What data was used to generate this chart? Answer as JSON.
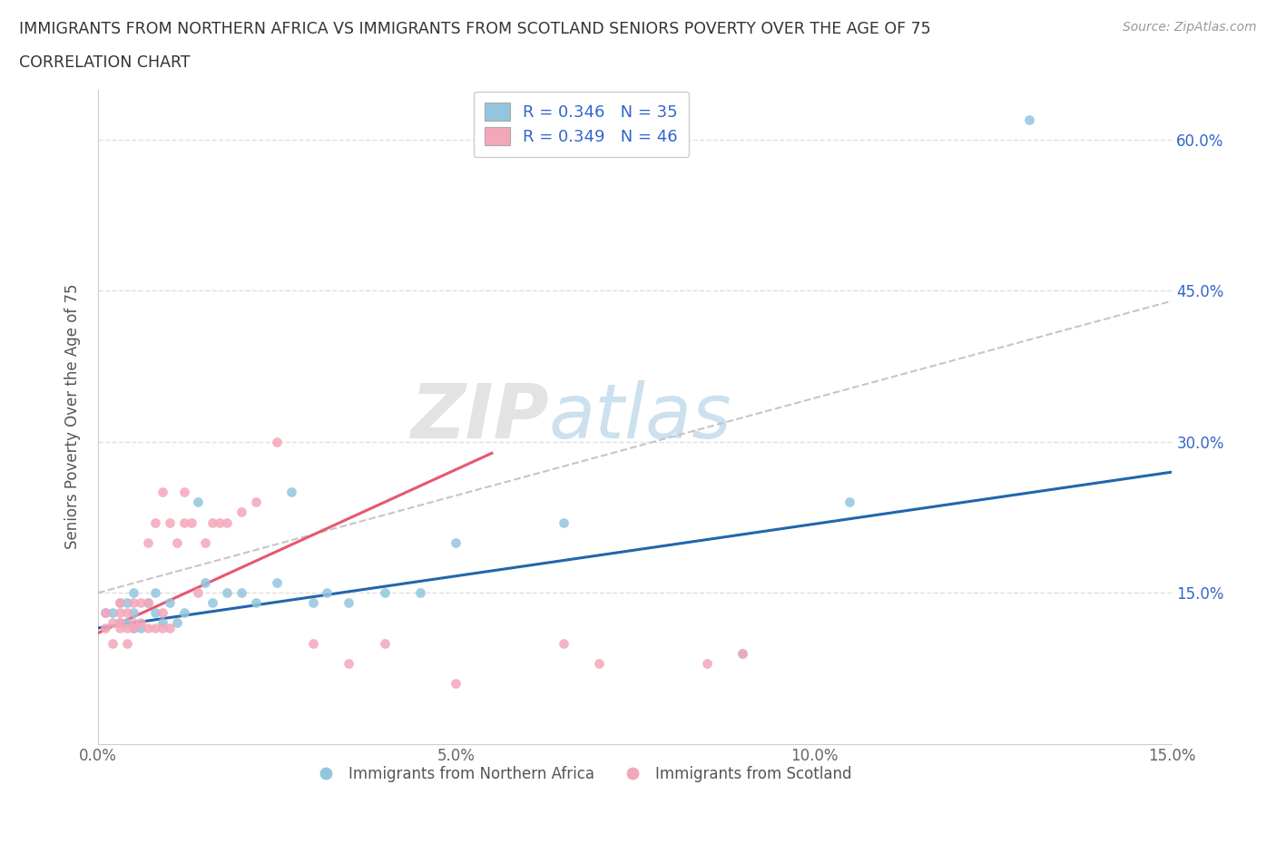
{
  "title_line1": "IMMIGRANTS FROM NORTHERN AFRICA VS IMMIGRANTS FROM SCOTLAND SENIORS POVERTY OVER THE AGE OF 75",
  "title_line2": "CORRELATION CHART",
  "source": "Source: ZipAtlas.com",
  "ylabel": "Seniors Poverty Over the Age of 75",
  "watermark_left": "ZIP",
  "watermark_right": "atlas",
  "legend_blue_r": "R = 0.346",
  "legend_blue_n": "N = 35",
  "legend_pink_r": "R = 0.349",
  "legend_pink_n": "N = 46",
  "blue_color": "#92c5de",
  "pink_color": "#f4a7b9",
  "trend_blue_color": "#2166ac",
  "trend_pink_color": "#e8566e",
  "trend_pink_dash_color": "#e8566e",
  "trend_gray_color": "#c0c0c0",
  "legend_text_color": "#3366cc",
  "xlim": [
    0.0,
    0.15
  ],
  "ylim": [
    0.0,
    0.65
  ],
  "xticks": [
    0.0,
    0.05,
    0.1,
    0.15
  ],
  "xtick_labels": [
    "0.0%",
    "5.0%",
    "10.0%",
    "15.0%"
  ],
  "yticks": [
    0.15,
    0.3,
    0.45,
    0.6
  ],
  "ytick_labels": [
    "15.0%",
    "30.0%",
    "45.0%",
    "60.0%"
  ],
  "blue_scatter_x": [
    0.001,
    0.002,
    0.003,
    0.003,
    0.004,
    0.004,
    0.005,
    0.005,
    0.005,
    0.006,
    0.007,
    0.008,
    0.008,
    0.009,
    0.01,
    0.011,
    0.012,
    0.014,
    0.015,
    0.016,
    0.018,
    0.02,
    0.022,
    0.025,
    0.027,
    0.03,
    0.032,
    0.035,
    0.04,
    0.045,
    0.05,
    0.065,
    0.09,
    0.105,
    0.13
  ],
  "blue_scatter_y": [
    0.13,
    0.13,
    0.12,
    0.14,
    0.12,
    0.14,
    0.115,
    0.13,
    0.15,
    0.115,
    0.14,
    0.13,
    0.15,
    0.12,
    0.14,
    0.12,
    0.13,
    0.24,
    0.16,
    0.14,
    0.15,
    0.15,
    0.14,
    0.16,
    0.25,
    0.14,
    0.15,
    0.14,
    0.15,
    0.15,
    0.2,
    0.22,
    0.09,
    0.24,
    0.62
  ],
  "pink_scatter_x": [
    0.001,
    0.001,
    0.002,
    0.002,
    0.003,
    0.003,
    0.003,
    0.003,
    0.004,
    0.004,
    0.004,
    0.005,
    0.005,
    0.005,
    0.006,
    0.006,
    0.007,
    0.007,
    0.007,
    0.008,
    0.008,
    0.009,
    0.009,
    0.009,
    0.01,
    0.01,
    0.011,
    0.012,
    0.012,
    0.013,
    0.014,
    0.015,
    0.016,
    0.017,
    0.018,
    0.02,
    0.022,
    0.025,
    0.03,
    0.035,
    0.04,
    0.05,
    0.065,
    0.07,
    0.085,
    0.09
  ],
  "pink_scatter_y": [
    0.115,
    0.13,
    0.1,
    0.12,
    0.115,
    0.12,
    0.13,
    0.14,
    0.1,
    0.115,
    0.13,
    0.115,
    0.12,
    0.14,
    0.12,
    0.14,
    0.115,
    0.14,
    0.2,
    0.115,
    0.22,
    0.115,
    0.13,
    0.25,
    0.115,
    0.22,
    0.2,
    0.22,
    0.25,
    0.22,
    0.15,
    0.2,
    0.22,
    0.22,
    0.22,
    0.23,
    0.24,
    0.3,
    0.1,
    0.08,
    0.1,
    0.06,
    0.1,
    0.08,
    0.08,
    0.09
  ],
  "background_color": "#ffffff",
  "grid_color": "#e0e0e0",
  "title_color": "#333333",
  "axis_color": "#666666",
  "label_color": "#555555"
}
